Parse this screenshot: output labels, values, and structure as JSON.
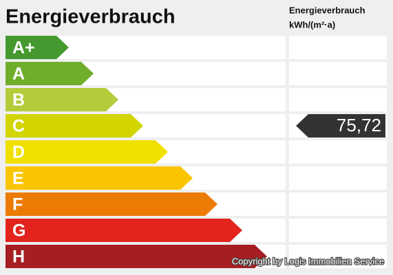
{
  "header": {
    "title": "Energieverbrauch",
    "column_title": "Energieverbrauch",
    "column_unit": "kWh/(m²·a)"
  },
  "classes": [
    {
      "label": "A+",
      "color": "#45992f"
    },
    {
      "label": "A",
      "color": "#6fae2b"
    },
    {
      "label": "B",
      "color": "#b3cd3a"
    },
    {
      "label": "C",
      "color": "#d2d500"
    },
    {
      "label": "D",
      "color": "#f0e000"
    },
    {
      "label": "E",
      "color": "#fbc400"
    },
    {
      "label": "F",
      "color": "#ec7b05"
    },
    {
      "label": "G",
      "color": "#e2241d"
    },
    {
      "label": "H",
      "color": "#a61d22"
    }
  ],
  "marker": {
    "value": "75,72",
    "class": "C",
    "color": "#333333"
  },
  "copyright": "Copyright by Logis Immobilien Service"
}
